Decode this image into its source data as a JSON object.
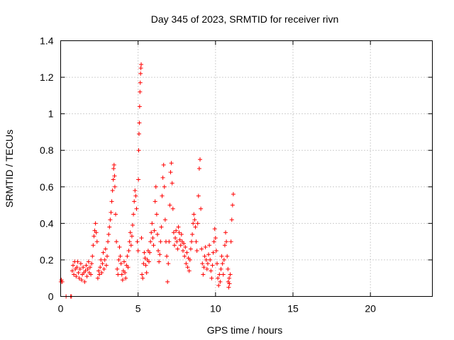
{
  "chart_data": {
    "type": "scatter",
    "title": "Day 345 of 2023, SRMTID for receiver rivn",
    "xlabel": "GPS time / hours",
    "ylabel": "SRMTID / TECUs",
    "xlim": [
      0,
      24
    ],
    "ylim": [
      0,
      1.4
    ],
    "xticks": [
      0,
      5,
      10,
      15,
      20
    ],
    "xtick_labels": [
      "0",
      "5",
      "10",
      "15",
      "20"
    ],
    "yticks": [
      0,
      0.2,
      0.4,
      0.6,
      0.8,
      1.0,
      1.2,
      1.4
    ],
    "ytick_labels": [
      "0",
      "0.2",
      "0.4",
      "0.6",
      "0.8",
      "1",
      "1.2",
      "1.4"
    ],
    "grid": true,
    "marker": "+",
    "color": "#ff0000",
    "series": [
      {
        "name": "SRMTID",
        "points": [
          [
            0.02,
            0.08
          ],
          [
            0.05,
            0.09
          ],
          [
            0.1,
            0.08
          ],
          [
            0.35,
            0.0
          ],
          [
            0.65,
            0.0
          ],
          [
            0.7,
            0.0
          ],
          [
            0.75,
            0.14
          ],
          [
            0.8,
            0.17
          ],
          [
            0.85,
            0.12
          ],
          [
            0.9,
            0.19
          ],
          [
            0.95,
            0.15
          ],
          [
            1.0,
            0.11
          ],
          [
            1.05,
            0.16
          ],
          [
            1.1,
            0.19
          ],
          [
            1.15,
            0.13
          ],
          [
            1.2,
            0.1
          ],
          [
            1.25,
            0.15
          ],
          [
            1.3,
            0.18
          ],
          [
            1.35,
            0.09
          ],
          [
            1.4,
            0.12
          ],
          [
            1.45,
            0.16
          ],
          [
            1.5,
            0.13
          ],
          [
            1.55,
            0.08
          ],
          [
            1.6,
            0.14
          ],
          [
            1.65,
            0.17
          ],
          [
            1.7,
            0.11
          ],
          [
            1.75,
            0.15
          ],
          [
            1.8,
            0.19
          ],
          [
            1.85,
            0.13
          ],
          [
            1.9,
            0.16
          ],
          [
            1.95,
            0.12
          ],
          [
            2.0,
            0.18
          ],
          [
            2.05,
            0.22
          ],
          [
            2.1,
            0.28
          ],
          [
            2.15,
            0.33
          ],
          [
            2.2,
            0.36
          ],
          [
            2.25,
            0.4
          ],
          [
            2.3,
            0.35
          ],
          [
            2.35,
            0.3
          ],
          [
            2.4,
            0.1
          ],
          [
            2.45,
            0.14
          ],
          [
            2.5,
            0.12
          ],
          [
            2.55,
            0.16
          ],
          [
            2.6,
            0.2
          ],
          [
            2.65,
            0.13
          ],
          [
            2.7,
            0.18
          ],
          [
            2.75,
            0.24
          ],
          [
            2.8,
            0.15
          ],
          [
            2.85,
            0.2
          ],
          [
            2.9,
            0.26
          ],
          [
            2.95,
            0.17
          ],
          [
            3.0,
            0.22
          ],
          [
            3.05,
            0.3
          ],
          [
            3.1,
            0.34
          ],
          [
            3.15,
            0.38
          ],
          [
            3.2,
            0.42
          ],
          [
            3.25,
            0.46
          ],
          [
            3.3,
            0.52
          ],
          [
            3.35,
            0.58
          ],
          [
            3.4,
            0.64
          ],
          [
            3.42,
            0.7
          ],
          [
            3.45,
            0.72
          ],
          [
            3.48,
            0.66
          ],
          [
            3.5,
            0.6
          ],
          [
            3.55,
            0.45
          ],
          [
            3.6,
            0.3
          ],
          [
            3.65,
            0.15
          ],
          [
            3.7,
            0.12
          ],
          [
            3.75,
            0.2
          ],
          [
            3.8,
            0.27
          ],
          [
            3.85,
            0.22
          ],
          [
            3.9,
            0.18
          ],
          [
            3.95,
            0.12
          ],
          [
            4.0,
            0.09
          ],
          [
            4.05,
            0.14
          ],
          [
            4.1,
            0.19
          ],
          [
            4.15,
            0.13
          ],
          [
            4.2,
            0.1
          ],
          [
            4.25,
            0.17
          ],
          [
            4.3,
            0.22
          ],
          [
            4.35,
            0.16
          ],
          [
            4.4,
            0.25
          ],
          [
            4.45,
            0.3
          ],
          [
            4.5,
            0.35
          ],
          [
            4.55,
            0.28
          ],
          [
            4.6,
            0.33
          ],
          [
            4.65,
            0.39
          ],
          [
            4.7,
            0.45
          ],
          [
            4.75,
            0.52
          ],
          [
            4.8,
            0.58
          ],
          [
            4.85,
            0.55
          ],
          [
            4.9,
            0.48
          ],
          [
            4.95,
            0.3
          ],
          [
            5.0,
            0.25
          ],
          [
            5.02,
            0.64
          ],
          [
            5.04,
            0.8
          ],
          [
            5.06,
            0.89
          ],
          [
            5.08,
            0.95
          ],
          [
            5.1,
            1.04
          ],
          [
            5.12,
            1.12
          ],
          [
            5.14,
            1.17
          ],
          [
            5.16,
            1.22
          ],
          [
            5.18,
            1.25
          ],
          [
            5.2,
            1.27
          ],
          [
            5.22,
            0.32
          ],
          [
            5.25,
            0.12
          ],
          [
            5.3,
            0.1
          ],
          [
            5.35,
            0.18
          ],
          [
            5.4,
            0.24
          ],
          [
            5.45,
            0.21
          ],
          [
            5.5,
            0.17
          ],
          [
            5.55,
            0.13
          ],
          [
            5.6,
            0.2
          ],
          [
            5.65,
            0.25
          ],
          [
            5.7,
            0.19
          ],
          [
            5.75,
            0.24
          ],
          [
            5.8,
            0.3
          ],
          [
            5.85,
            0.35
          ],
          [
            5.9,
            0.4
          ],
          [
            5.95,
            0.32
          ],
          [
            6.0,
            0.28
          ],
          [
            6.05,
            0.36
          ],
          [
            6.1,
            0.52
          ],
          [
            6.15,
            0.6
          ],
          [
            6.2,
            0.45
          ],
          [
            6.25,
            0.34
          ],
          [
            6.3,
            0.25
          ],
          [
            6.35,
            0.19
          ],
          [
            6.4,
            0.23
          ],
          [
            6.45,
            0.3
          ],
          [
            6.5,
            0.38
          ],
          [
            6.55,
            0.55
          ],
          [
            6.6,
            0.65
          ],
          [
            6.65,
            0.72
          ],
          [
            6.7,
            0.6
          ],
          [
            6.75,
            0.42
          ],
          [
            6.8,
            0.3
          ],
          [
            6.85,
            0.22
          ],
          [
            6.9,
            0.08
          ],
          [
            6.95,
            0.18
          ],
          [
            7.0,
            0.3
          ],
          [
            7.05,
            0.5
          ],
          [
            7.1,
            0.68
          ],
          [
            7.15,
            0.73
          ],
          [
            7.2,
            0.62
          ],
          [
            7.25,
            0.48
          ],
          [
            7.3,
            0.35
          ],
          [
            7.35,
            0.28
          ],
          [
            7.4,
            0.32
          ],
          [
            7.45,
            0.36
          ],
          [
            7.5,
            0.3
          ],
          [
            7.55,
            0.26
          ],
          [
            7.6,
            0.38
          ],
          [
            7.65,
            0.35
          ],
          [
            7.7,
            0.31
          ],
          [
            7.75,
            0.28
          ],
          [
            7.8,
            0.34
          ],
          [
            7.85,
            0.3
          ],
          [
            7.9,
            0.25
          ],
          [
            7.95,
            0.29
          ],
          [
            8.0,
            0.22
          ],
          [
            8.05,
            0.27
          ],
          [
            8.1,
            0.18
          ],
          [
            8.15,
            0.24
          ],
          [
            8.2,
            0.16
          ],
          [
            8.25,
            0.21
          ],
          [
            8.3,
            0.14
          ],
          [
            8.35,
            0.2
          ],
          [
            8.4,
            0.26
          ],
          [
            8.45,
            0.3
          ],
          [
            8.5,
            0.34
          ],
          [
            8.55,
            0.4
          ],
          [
            8.6,
            0.45
          ],
          [
            8.65,
            0.42
          ],
          [
            8.7,
            0.38
          ],
          [
            8.75,
            0.3
          ],
          [
            8.8,
            0.25
          ],
          [
            8.85,
            0.4
          ],
          [
            8.9,
            0.55
          ],
          [
            8.95,
            0.7
          ],
          [
            9.0,
            0.75
          ],
          [
            9.05,
            0.48
          ],
          [
            9.1,
            0.26
          ],
          [
            9.15,
            0.18
          ],
          [
            9.2,
            0.12
          ],
          [
            9.25,
            0.16
          ],
          [
            9.3,
            0.22
          ],
          [
            9.35,
            0.27
          ],
          [
            9.4,
            0.2
          ],
          [
            9.45,
            0.15
          ],
          [
            9.5,
            0.18
          ],
          [
            9.55,
            0.23
          ],
          [
            9.6,
            0.28
          ],
          [
            9.65,
            0.2
          ],
          [
            9.7,
            0.14
          ],
          [
            9.75,
            0.1
          ],
          [
            9.8,
            0.17
          ],
          [
            9.85,
            0.24
          ],
          [
            9.9,
            0.3
          ],
          [
            9.95,
            0.37
          ],
          [
            10.0,
            0.32
          ],
          [
            10.05,
            0.25
          ],
          [
            10.1,
            0.18
          ],
          [
            10.15,
            0.1
          ],
          [
            10.2,
            0.06
          ],
          [
            10.25,
            0.12
          ],
          [
            10.3,
            0.08
          ],
          [
            10.35,
            0.15
          ],
          [
            10.4,
            0.22
          ],
          [
            10.45,
            0.18
          ],
          [
            10.5,
            0.12
          ],
          [
            10.55,
            0.2
          ],
          [
            10.6,
            0.28
          ],
          [
            10.65,
            0.35
          ],
          [
            10.7,
            0.3
          ],
          [
            10.75,
            0.22
          ],
          [
            10.8,
            0.15
          ],
          [
            10.82,
            0.08
          ],
          [
            10.85,
            0.05
          ],
          [
            10.88,
            0.1
          ],
          [
            10.9,
            0.07
          ],
          [
            10.95,
            0.12
          ],
          [
            11.0,
            0.3
          ],
          [
            11.05,
            0.42
          ],
          [
            11.1,
            0.5
          ],
          [
            11.15,
            0.56
          ]
        ]
      }
    ]
  }
}
